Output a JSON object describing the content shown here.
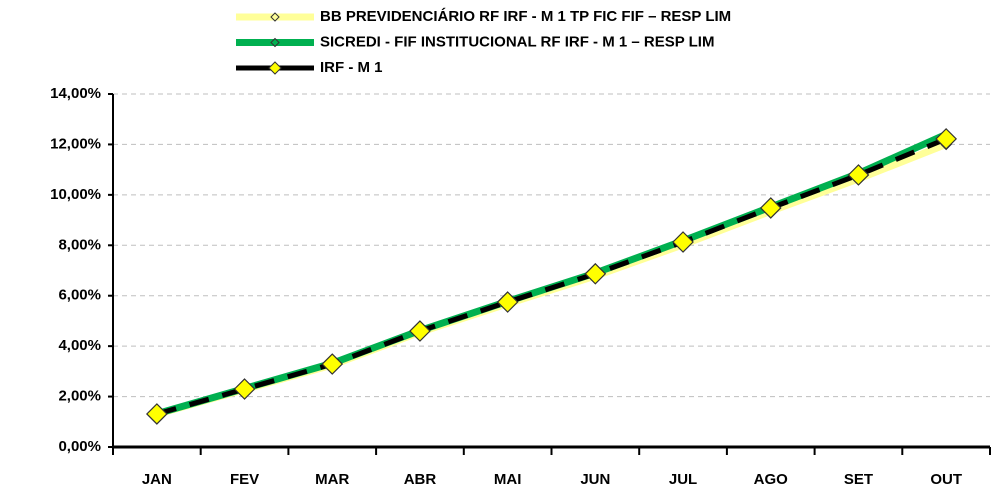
{
  "chart_data": {
    "type": "line",
    "categories": [
      "JAN",
      "FEV",
      "MAR",
      "ABR",
      "MAI",
      "JUN",
      "JUL",
      "AGO",
      "SET",
      "OUT"
    ],
    "series": [
      {
        "name": "BB PREVIDENCIÁRIO RF IRF - M 1 TP FIC FIF – RESP LIM",
        "color": "#ffff99",
        "values": [
          1.3,
          2.28,
          3.25,
          4.55,
          5.68,
          6.78,
          8.02,
          9.35,
          10.63,
          12.0
        ]
      },
      {
        "name": "SICREDI - FIF INSTITUCIONAL RF IRF - M 1 – RESP LIM",
        "color": "#00b050",
        "values": [
          1.32,
          2.32,
          3.32,
          4.62,
          5.78,
          6.9,
          8.18,
          9.52,
          10.85,
          12.4
        ]
      },
      {
        "name": "IRF - M 1",
        "color": "#000000",
        "values": [
          1.31,
          2.3,
          3.29,
          4.6,
          5.75,
          6.87,
          8.13,
          9.48,
          10.79,
          12.22
        ]
      }
    ],
    "ylim": [
      0,
      14
    ],
    "yticks": [
      {
        "value": 0,
        "label": "0,00%"
      },
      {
        "value": 2,
        "label": "2,00%"
      },
      {
        "value": 4,
        "label": "4,00%"
      },
      {
        "value": 6,
        "label": "6,00%"
      },
      {
        "value": 8,
        "label": "8,00%"
      },
      {
        "value": 10,
        "label": "10,00%"
      },
      {
        "value": 12,
        "label": "12,00%"
      },
      {
        "value": 14,
        "label": "14,00%"
      }
    ],
    "grid": true,
    "legend": "top"
  }
}
